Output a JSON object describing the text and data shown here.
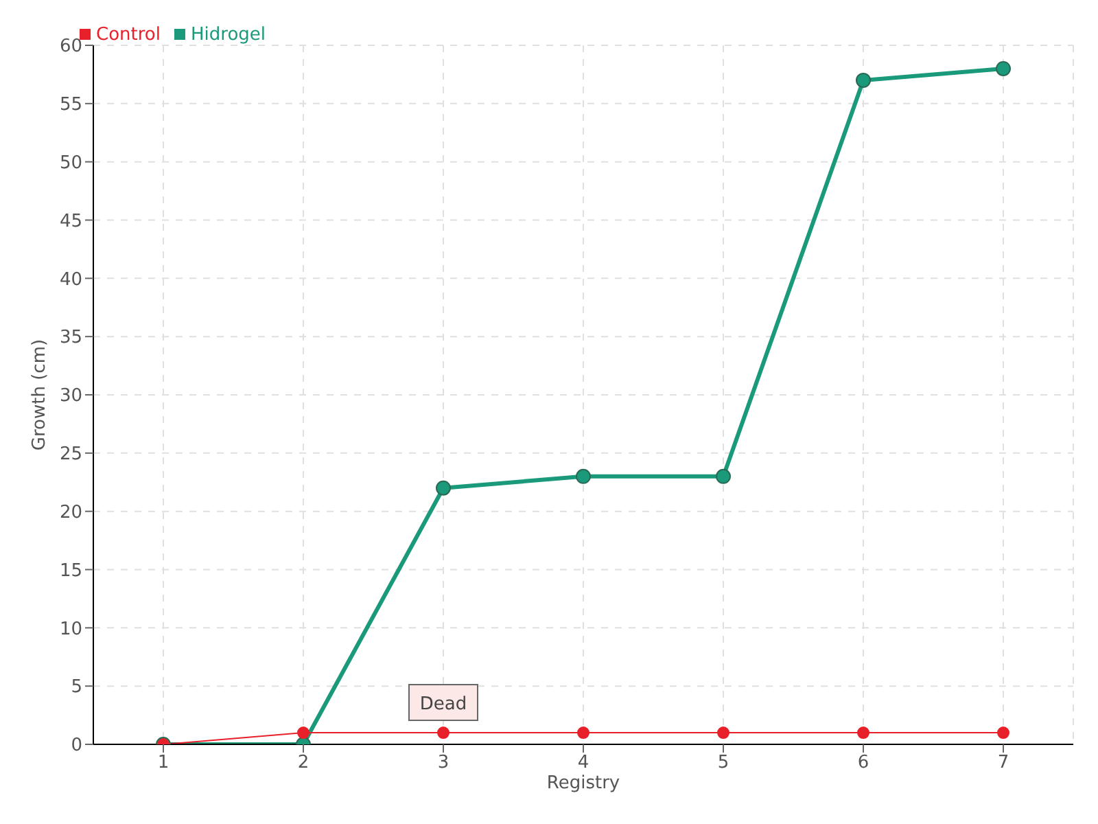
{
  "chart_data": {
    "type": "line",
    "xlabel": "Registry",
    "ylabel": "Growth (cm)",
    "categories": [
      "1",
      "2",
      "3",
      "4",
      "5",
      "6",
      "7"
    ],
    "series": [
      {
        "name": "Hidrogel",
        "color": "#1a9a7a",
        "values": [
          0,
          0,
          22,
          23,
          23,
          57,
          58
        ]
      },
      {
        "name": "Control",
        "color": "#e8202a",
        "values": [
          0,
          1,
          1,
          1,
          1,
          1,
          1
        ]
      }
    ],
    "annotations": [
      {
        "text": "Dead",
        "x": "3",
        "y": 1
      }
    ],
    "ylim": [
      0,
      60
    ],
    "yticks": [
      0,
      5,
      10,
      15,
      20,
      25,
      30,
      35,
      40,
      45,
      50,
      55,
      60
    ],
    "grid": true,
    "legend": "top left",
    "marker": "circle",
    "line_style": "solid"
  }
}
